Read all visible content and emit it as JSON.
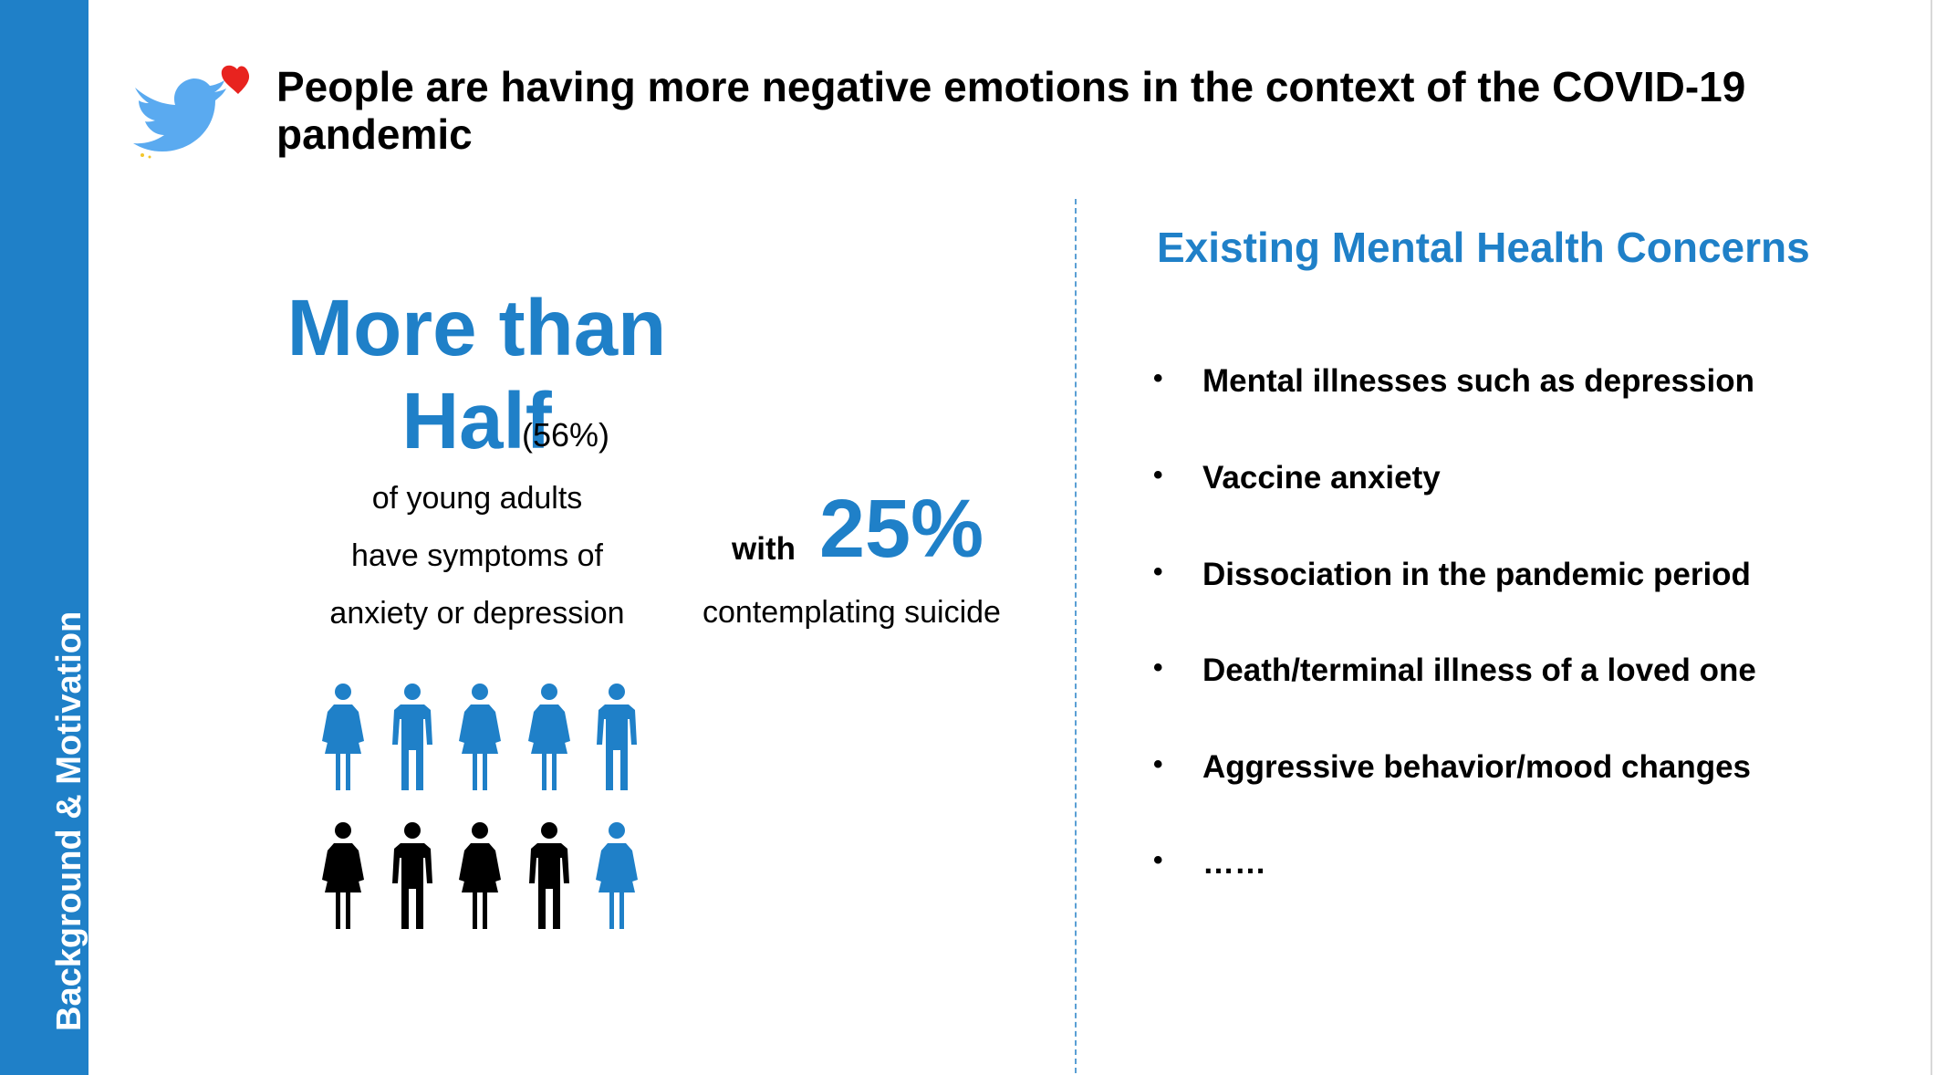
{
  "sidebar": {
    "label": "Background & Motivation",
    "color": "#1f80c8"
  },
  "logo": {
    "icon": "twitter-bird-with-heart-icon",
    "bird_color": "#5aaaf0",
    "heart_color": "#e8231f"
  },
  "header": {
    "title": "People are having more negative emotions in the context of the COVID-19 pandemic"
  },
  "stats": {
    "headline_line1": "More than",
    "headline_line2": "Half",
    "percent": "(56%)",
    "line1": "of young adults",
    "line2": "have symptoms of",
    "line3": "anxiety or depression",
    "with_label": "with",
    "suicide_percent": "25%",
    "suicide_text": "contemplating suicide"
  },
  "people": {
    "icon": "person-icon",
    "rows": [
      [
        {
          "shape": "female",
          "color": "#1f80c8"
        },
        {
          "shape": "male",
          "color": "#1f80c8"
        },
        {
          "shape": "female",
          "color": "#1f80c8"
        },
        {
          "shape": "female",
          "color": "#1f80c8"
        },
        {
          "shape": "male",
          "color": "#1f80c8"
        }
      ],
      [
        {
          "shape": "female",
          "color": "#000000"
        },
        {
          "shape": "male",
          "color": "#000000"
        },
        {
          "shape": "female",
          "color": "#000000"
        },
        {
          "shape": "male",
          "color": "#000000"
        },
        {
          "shape": "female",
          "color": "#1f80c8"
        }
      ]
    ]
  },
  "concerns": {
    "heading": "Existing Mental Health Concerns",
    "bullet": "•",
    "items": [
      "Mental illnesses such as depression",
      "Vaccine anxiety",
      "Dissociation in the pandemic period",
      "Death/terminal illness of a loved one",
      "Aggressive behavior/mood changes",
      "……"
    ]
  },
  "colors": {
    "accent": "#1f80c8",
    "text": "#000000",
    "background": "#ffffff"
  }
}
